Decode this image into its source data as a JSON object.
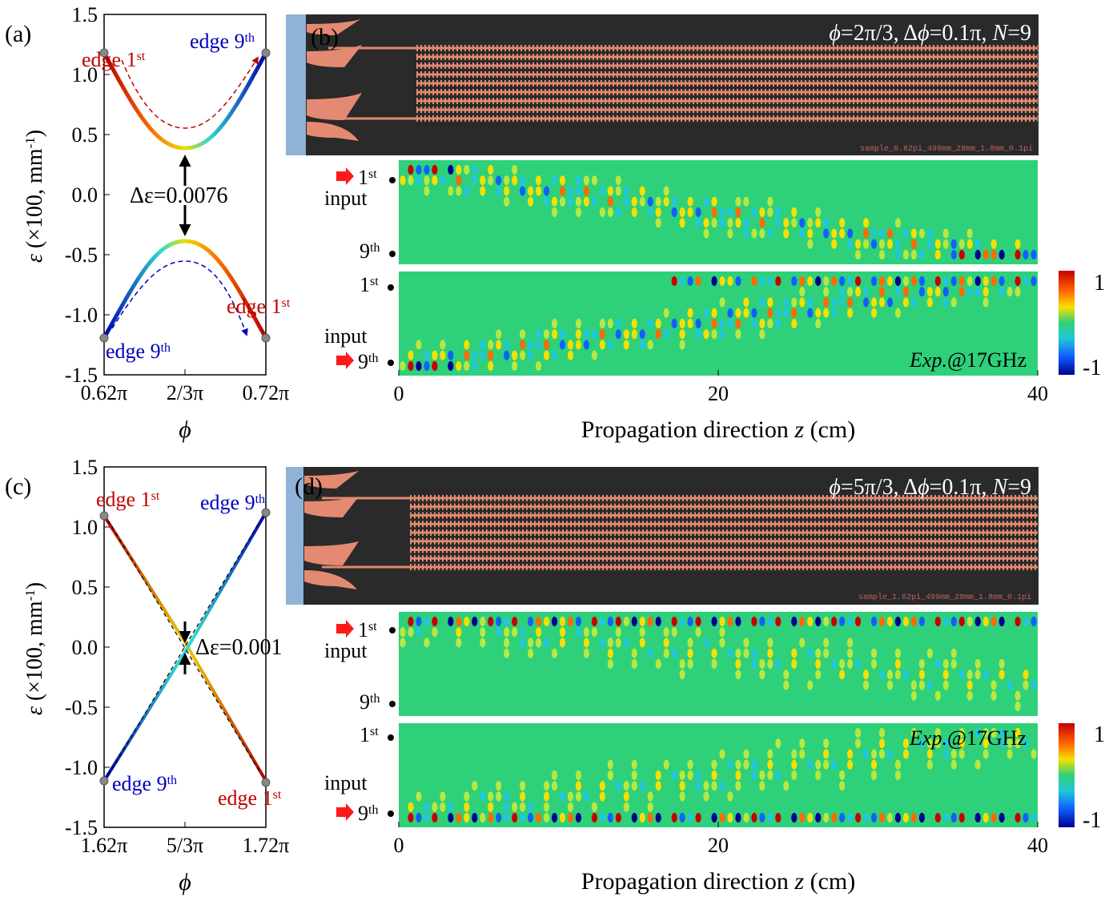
{
  "panels": {
    "a": {
      "label": "(a)"
    },
    "b": {
      "label": "(b)",
      "params": "ϕ=2π/3, Δϕ=0.1π, N=9",
      "sample": "sample_0.62pi_499mm_28mm_1.8mm_0.1pi"
    },
    "c": {
      "label": "(c)"
    },
    "d": {
      "label": "(d)",
      "params": "ϕ=5π/3, Δϕ=0.1π, N=9",
      "sample": "sample_1.62pi_499mm_28mm_1.8mm_0.1pi"
    }
  },
  "band_plot_top": {
    "ylabel": "ε (×100, mm-1)",
    "xlabel": "ϕ",
    "xticks": [
      "0.62π",
      "2/3π",
      "0.72π"
    ],
    "yticks": [
      "1.5",
      "1.0",
      "0.5",
      "0.0",
      "-0.5",
      "-1.0",
      "-1.5"
    ],
    "gap_label": "Δε=0.0076",
    "edge_labels": {
      "tl": "edge 1st",
      "tr": "edge 9th",
      "bl": "edge 9th",
      "br": "edge 1st"
    }
  },
  "band_plot_bottom": {
    "ylabel": "ε (×100, mm-1)",
    "xlabel": "ϕ",
    "xticks": [
      "1.62π",
      "5/3π",
      "1.72π"
    ],
    "yticks": [
      "1.5",
      "1.0",
      "0.5",
      "0.0",
      "-0.5",
      "-1.0",
      "-1.5"
    ],
    "gap_label": "Δε=0.001",
    "edge_labels": {
      "tl": "edge 1st",
      "tr": "edge 9th",
      "bl": "edge 9th",
      "br": "edge 1st"
    }
  },
  "field_maps": {
    "labels": {
      "first": "1st",
      "ninth": "9th",
      "input": "input"
    },
    "exp_label": "Exp.@17GHz",
    "xticks": [
      "0",
      "20",
      "40"
    ],
    "xlabel": "Propagation direction z (cm)",
    "colorbar": {
      "max": "1",
      "min": "-1"
    }
  },
  "colors": {
    "red_edge": "#c00000",
    "blue_edge": "#0000c0",
    "field_bg": "#2fd07a"
  },
  "chart_data": [
    {
      "type": "line",
      "panel": "a",
      "x_range": [
        0.62,
        0.72
      ],
      "ylim": [
        -1.5,
        1.5
      ],
      "series": [
        {
          "values_x": [
            0.62,
            0.6467,
            0.6667,
            0.6867,
            0.72
          ],
          "values_y": [
            1.19,
            0.6,
            0.38,
            0.6,
            1.19
          ]
        },
        {
          "values_x": [
            0.62,
            0.6467,
            0.6667,
            0.6867,
            0.72
          ],
          "values_y": [
            -1.19,
            -0.6,
            -0.38,
            -0.6,
            -1.19
          ]
        }
      ],
      "gap": 0.0076
    },
    {
      "type": "line",
      "panel": "c",
      "x_range": [
        1.62,
        1.72
      ],
      "ylim": [
        -1.5,
        1.5
      ],
      "series": [
        {
          "values_x": [
            1.62,
            1.6667,
            1.72
          ],
          "values_y": [
            1.1,
            0.05,
            1.12
          ]
        },
        {
          "values_x": [
            1.62,
            1.6667,
            1.72
          ],
          "values_y": [
            -1.1,
            -0.05,
            -1.12
          ]
        }
      ],
      "gap": 0.001
    }
  ]
}
